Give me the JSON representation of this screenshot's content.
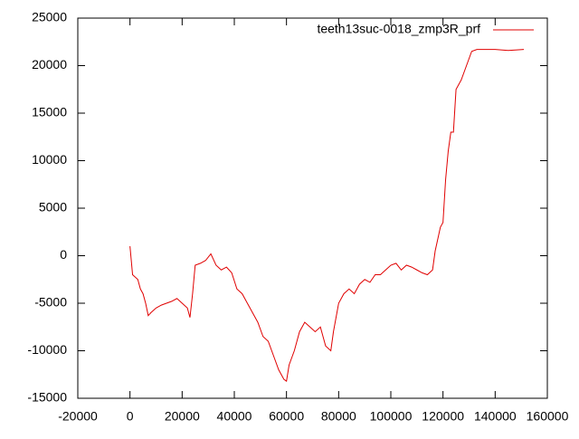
{
  "chart_data": {
    "type": "line",
    "x": [
      0,
      1000,
      3000,
      4000,
      5000,
      6000,
      7000,
      8000,
      10000,
      12000,
      14000,
      16000,
      18000,
      20000,
      22000,
      23000,
      24000,
      25000,
      27000,
      29000,
      31000,
      33000,
      35000,
      37000,
      39000,
      41000,
      43000,
      45000,
      47000,
      49000,
      51000,
      53000,
      55000,
      57000,
      59000,
      60000,
      61000,
      63000,
      65000,
      67000,
      69000,
      71000,
      73000,
      75000,
      77000,
      78000,
      80000,
      82000,
      84000,
      86000,
      88000,
      90000,
      92000,
      94000,
      96000,
      98000,
      100000,
      102000,
      104000,
      106000,
      108000,
      110000,
      112000,
      114000,
      116000,
      117000,
      119000,
      120000,
      121000,
      122000,
      123000,
      124000,
      125000,
      127000,
      129000,
      131000,
      133000,
      140000,
      145000,
      151000
    ],
    "series": [
      {
        "name": "teeth13suc-0018_zmp3R_prf",
        "color": "#e00000",
        "values": [
          1000,
          -2000,
          -2500,
          -3500,
          -4000,
          -5000,
          -6300,
          -6000,
          -5500,
          -5200,
          -5000,
          -4800,
          -4500,
          -5000,
          -5500,
          -6500,
          -4000,
          -1000,
          -800,
          -500,
          200,
          -1000,
          -1500,
          -1200,
          -1800,
          -3500,
          -4000,
          -5000,
          -6000,
          -7000,
          -8500,
          -9000,
          -10500,
          -12000,
          -13000,
          -13200,
          -11500,
          -10000,
          -8000,
          -7000,
          -7500,
          -8000,
          -7500,
          -9500,
          -10000,
          -8000,
          -5000,
          -4000,
          -3500,
          -4000,
          -3000,
          -2500,
          -2800,
          -2000,
          -2000,
          -1500,
          -1000,
          -800,
          -1500,
          -1000,
          -1200,
          -1500,
          -1800,
          -2000,
          -1500,
          500,
          3000,
          3500,
          8000,
          11000,
          13000,
          13000,
          17500,
          18500,
          20000,
          21500,
          21700,
          21700,
          21600,
          21700
        ]
      }
    ],
    "xlim": [
      -20000,
      160000
    ],
    "xticks": [
      -20000,
      0,
      20000,
      40000,
      60000,
      80000,
      100000,
      120000,
      140000,
      160000
    ],
    "ylim": [
      -15000,
      25000
    ],
    "yticks": [
      -15000,
      -10000,
      -5000,
      0,
      5000,
      10000,
      15000,
      20000,
      25000
    ],
    "legend": "top-right"
  }
}
